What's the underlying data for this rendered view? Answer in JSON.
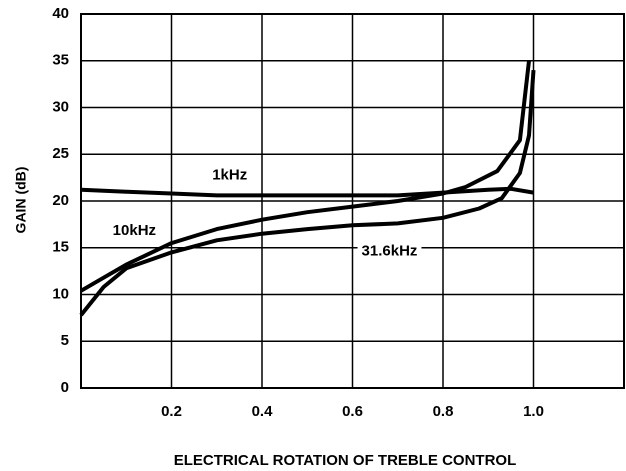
{
  "chart_data": {
    "type": "line",
    "xlabel": "ELECTRICAL ROTATION OF TREBLE CONTROL",
    "ylabel": "GAIN (dB)",
    "xlim": [
      0,
      1.2
    ],
    "ylim": [
      0,
      40
    ],
    "xticks": [
      0.2,
      0.4,
      0.6,
      0.8,
      {
        "value": 1,
        "label": "1.0"
      }
    ],
    "yticks": [
      0,
      5,
      10,
      15,
      20,
      25,
      30,
      35,
      40
    ],
    "grid": true,
    "series": [
      {
        "name": "1kHz",
        "color": "#000000",
        "x": [
          0,
          0.1,
          0.2,
          0.3,
          0.4,
          0.5,
          0.6,
          0.7,
          0.8,
          0.9,
          0.95,
          1.0
        ],
        "values": [
          21.2,
          21.0,
          20.8,
          20.6,
          20.6,
          20.6,
          20.6,
          20.6,
          20.9,
          21.2,
          21.3,
          20.9
        ]
      },
      {
        "name": "10kHz",
        "color": "#000000",
        "x": [
          0,
          0.05,
          0.1,
          0.2,
          0.3,
          0.4,
          0.5,
          0.6,
          0.7,
          0.8,
          0.85,
          0.92,
          0.97,
          0.99
        ],
        "values": [
          10.4,
          11.8,
          13.2,
          15.5,
          17.0,
          18.0,
          18.8,
          19.4,
          20.0,
          20.8,
          21.5,
          23.2,
          26.5,
          35
        ]
      },
      {
        "name": "31.6kHz",
        "color": "#000000",
        "x": [
          0,
          0.05,
          0.1,
          0.2,
          0.3,
          0.4,
          0.5,
          0.6,
          0.7,
          0.8,
          0.88,
          0.93,
          0.97,
          0.99,
          1.0
        ],
        "values": [
          7.8,
          10.8,
          12.8,
          14.5,
          15.8,
          16.5,
          17.0,
          17.4,
          17.6,
          18.2,
          19.2,
          20.3,
          23.0,
          27.0,
          34.0
        ]
      }
    ]
  }
}
